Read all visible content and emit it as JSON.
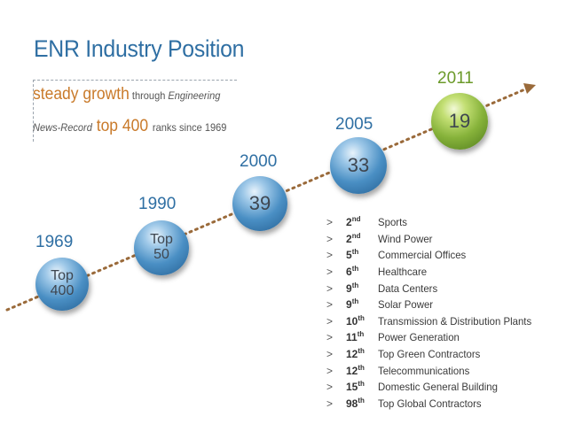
{
  "title": "ENR Industry Position",
  "subtitle": {
    "line1": [
      {
        "text": "steady growth",
        "style": "big"
      },
      {
        "text": " through ",
        "style": "small"
      },
      {
        "text": "Engineering",
        "style": "small it"
      }
    ],
    "line2": [
      {
        "text": "News-Record",
        "style": "small it"
      },
      {
        "text": " top 400 ",
        "style": "big"
      },
      {
        "text": "ranks since 1969",
        "style": "small"
      }
    ]
  },
  "milestones": [
    {
      "year": "1969",
      "line1": "Top",
      "line2": "400",
      "color": "blue"
    },
    {
      "year": "1990",
      "line1": "Top",
      "line2": "50",
      "color": "blue"
    },
    {
      "year": "2000",
      "line1": "39",
      "line2": "",
      "color": "blue"
    },
    {
      "year": "2005",
      "line1": "33",
      "line2": "",
      "color": "blue"
    },
    {
      "year": "2011",
      "line1": "19",
      "line2": "",
      "color": "green"
    }
  ],
  "rankings": [
    {
      "marker": ">",
      "num": "2",
      "suffix": "nd",
      "category": "Sports"
    },
    {
      "marker": ">",
      "num": "2",
      "suffix": "nd",
      "category": "Wind Power"
    },
    {
      "marker": ">",
      "num": "5",
      "suffix": "th",
      "category": "Commercial Offices"
    },
    {
      "marker": ">",
      "num": "6",
      "suffix": "th",
      "category": "Healthcare"
    },
    {
      "marker": ">",
      "num": "9",
      "suffix": "th",
      "category": "Data Centers"
    },
    {
      "marker": ">",
      "num": "9",
      "suffix": "th",
      "category": "Solar Power"
    },
    {
      "marker": ">",
      "num": "10",
      "suffix": "th",
      "category": "Transmission & Distribution Plants"
    },
    {
      "marker": ">",
      "num": "11",
      "suffix": "th",
      "category": "Power Generation"
    },
    {
      "marker": ">",
      "num": "12",
      "suffix": "th",
      "category": "Top Green Contractors"
    },
    {
      "marker": ">",
      "num": "12",
      "suffix": "th",
      "category": "Telecommunications"
    },
    {
      "marker": ">",
      "num": "15",
      "suffix": "th",
      "category": "Domestic General Building"
    },
    {
      "marker": ">",
      "num": "98",
      "suffix": "th",
      "category": "Top Global Contractors"
    }
  ],
  "colors": {
    "title": "#2f6fa3",
    "accent": "#c97a2a",
    "trend_line": "#9a6a3a",
    "blue_ball": "#4a8fc4",
    "green_ball": "#86b23a"
  }
}
